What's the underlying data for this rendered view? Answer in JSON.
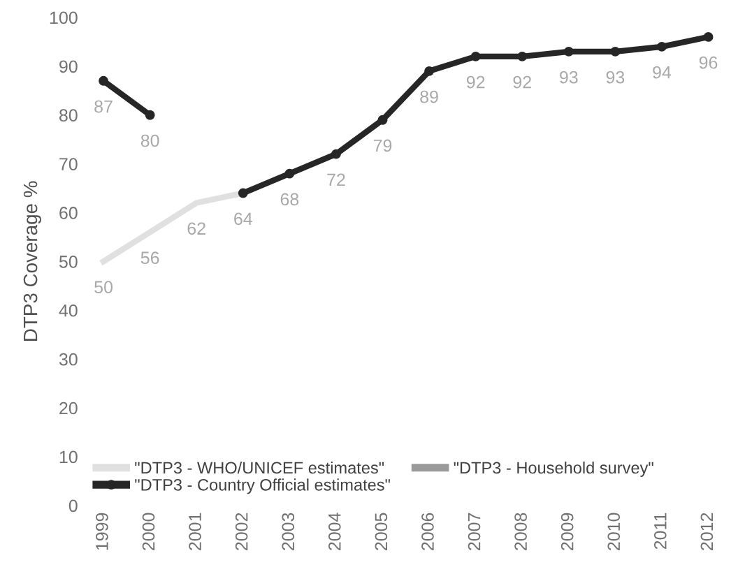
{
  "chart_data": {
    "type": "line",
    "ylabel": "DTP3 Coverage %",
    "categories": [
      "1999",
      "2000",
      "2001",
      "2002",
      "2003",
      "2004",
      "2005",
      "2006",
      "2007",
      "2008",
      "2009",
      "2010",
      "2011",
      "2012"
    ],
    "series": [
      {
        "name": "\"DTP3 - WHO/UNICEF estimates\"",
        "color": "#e0e0e0",
        "values": [
          50,
          56,
          62,
          64,
          null,
          null,
          null,
          null,
          null,
          null,
          null,
          null,
          null,
          null
        ],
        "value_labels": [
          "50",
          "56",
          "62",
          null,
          null,
          null,
          null,
          null,
          null,
          null,
          null,
          null,
          null,
          null
        ]
      },
      {
        "name": "\"DTP3 - Country Official estimates\"",
        "color": "#262626",
        "marker": "circle",
        "values": [
          87,
          80,
          null,
          64,
          68,
          72,
          79,
          89,
          92,
          92,
          93,
          93,
          94,
          96
        ],
        "value_labels": [
          "87",
          "80",
          null,
          "64",
          "68",
          "72",
          "79",
          "89",
          "92",
          "92",
          "93",
          "93",
          "94",
          "96"
        ]
      },
      {
        "name": "\"DTP3 - Household survey\"",
        "color": "#9a9a9a",
        "values": [
          null,
          null,
          null,
          null,
          null,
          null,
          null,
          null,
          null,
          null,
          null,
          null,
          null,
          null
        ]
      }
    ],
    "ylim": [
      0,
      100
    ],
    "yticks": [
      0,
      10,
      20,
      30,
      40,
      50,
      60,
      70,
      80,
      90,
      100
    ],
    "grid": false,
    "legend": "bottom left"
  }
}
